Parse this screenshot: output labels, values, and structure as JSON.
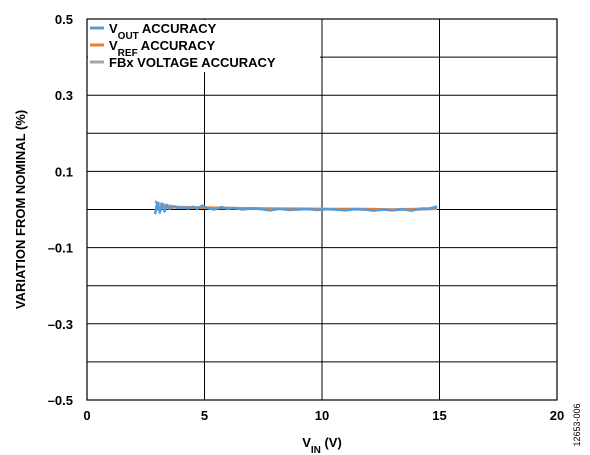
{
  "chart_data": {
    "type": "line",
    "title": "",
    "xlabel": {
      "main": "V",
      "sub": "IN",
      "unit": " (V)"
    },
    "ylabel": "VARIATION FROM NOMINAL (%)",
    "xlim": [
      0,
      20
    ],
    "ylim": [
      -0.5,
      0.5
    ],
    "xticks": [
      "0",
      "5",
      "10",
      "15",
      "20"
    ],
    "xtick_values": [
      0,
      5,
      10,
      15,
      20
    ],
    "yticks": [
      "0.5",
      "0.3",
      "0.1",
      "–0.1",
      "–0.3",
      "–0.5"
    ],
    "ytick_values": [
      0.5,
      0.3,
      0.1,
      -0.1,
      -0.3,
      -0.5
    ],
    "grid": true,
    "legend_position": "top-left",
    "figure_id": "12653-006",
    "series": [
      {
        "name": "VOUT ACCURACY",
        "legend": {
          "main": "V",
          "sub": "OUT",
          "rest": " ACCURACY"
        },
        "color": "#5B9BD5",
        "x": [
          2.9,
          3.0,
          3.1,
          3.2,
          3.3,
          3.4,
          3.5,
          3.7,
          3.9,
          4.1,
          4.3,
          4.5,
          4.7,
          4.9,
          5.1,
          5.4,
          5.7,
          6.0,
          6.3,
          6.6,
          7.0,
          7.4,
          7.8,
          8.2,
          8.6,
          9.0,
          9.4,
          9.8,
          10.2,
          10.6,
          11.0,
          11.4,
          11.8,
          12.2,
          12.6,
          13.0,
          13.4,
          13.8,
          14.2,
          14.6,
          14.9
        ],
        "y": [
          -0.012,
          0.018,
          -0.008,
          0.015,
          -0.005,
          0.012,
          0.002,
          0.008,
          0.004,
          0.006,
          0.003,
          0.007,
          0.002,
          0.01,
          0.004,
          0.0,
          0.006,
          0.002,
          0.004,
          0.0,
          0.003,
          0.001,
          -0.002,
          0.002,
          -0.001,
          0.0,
          0.001,
          -0.001,
          0.001,
          0.0,
          -0.002,
          0.001,
          0.0,
          -0.003,
          0.0,
          -0.002,
          0.001,
          -0.003,
          0.002,
          0.003,
          0.008
        ]
      },
      {
        "name": "VREF ACCURACY",
        "legend": {
          "main": "V",
          "sub": "REF",
          "rest": " ACCURACY"
        },
        "color": "#ED7D31",
        "x": [
          2.9,
          3.5,
          4.0,
          5.0,
          6.0,
          7.0,
          8.0,
          9.0,
          10.0,
          11.0,
          12.0,
          13.0,
          14.0,
          14.9
        ],
        "y": [
          0.006,
          0.006,
          0.005,
          0.005,
          0.004,
          0.003,
          0.002,
          0.002,
          0.001,
          0.001,
          0.001,
          0.0,
          0.001,
          0.002
        ]
      },
      {
        "name": "FBx VOLTAGE ACCURACY",
        "legend": {
          "main": "FBx VOLTAGE ACCURACY",
          "sub": "",
          "rest": ""
        },
        "color": "#A5A5A5",
        "x": [
          2.9,
          3.0,
          3.2,
          3.4,
          3.6,
          3.8,
          4.0,
          4.3,
          4.6,
          5.0,
          5.5,
          6.0,
          6.5,
          7.0,
          7.5,
          8.0,
          8.5,
          9.0,
          9.5,
          10.0,
          10.5,
          11.0,
          11.5,
          12.0,
          12.5,
          13.0,
          13.5,
          14.0,
          14.5,
          14.9
        ],
        "y": [
          0.022,
          0.016,
          0.014,
          0.01,
          0.009,
          0.007,
          0.006,
          0.006,
          0.005,
          0.005,
          0.004,
          0.004,
          0.003,
          0.003,
          0.002,
          0.002,
          0.001,
          0.001,
          0.001,
          0.001,
          0.0,
          0.001,
          0.0,
          0.0,
          0.0,
          -0.001,
          0.0,
          0.0,
          0.001,
          0.002
        ]
      }
    ]
  }
}
